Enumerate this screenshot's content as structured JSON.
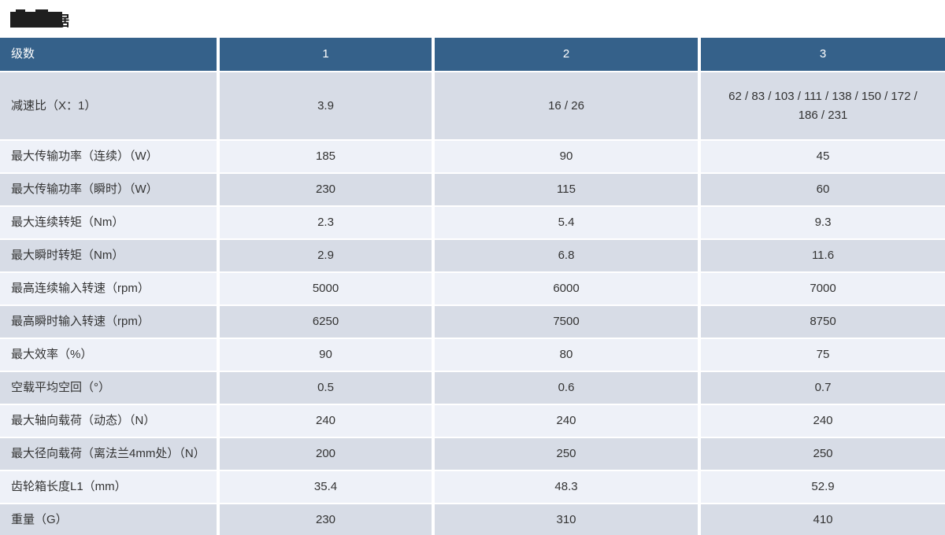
{
  "page_title": {
    "redacted": true,
    "visible_text": "据"
  },
  "table": {
    "header": {
      "label": "级数",
      "columns": [
        "1",
        "2",
        "3"
      ]
    },
    "rows": [
      {
        "label": "减速比（X：1）",
        "values": [
          "3.9",
          "16 / 26",
          "62 / 83 / 103 / 111 / 138 / 150 / 172 / 186 / 231"
        ]
      },
      {
        "label": "最大传输功率（连续）（W）",
        "values": [
          "185",
          "90",
          "45"
        ]
      },
      {
        "label": "最大传输功率（瞬时）（W）",
        "values": [
          "230",
          "115",
          "60"
        ]
      },
      {
        "label": "最大连续转矩（Nm）",
        "values": [
          "2.3",
          "5.4",
          "9.3"
        ]
      },
      {
        "label": "最大瞬时转矩（Nm）",
        "values": [
          "2.9",
          "6.8",
          "11.6"
        ]
      },
      {
        "label": "最高连续输入转速（rpm）",
        "values": [
          "5000",
          "6000",
          "7000"
        ]
      },
      {
        "label": "最高瞬时输入转速（rpm）",
        "values": [
          "6250",
          "7500",
          "8750"
        ]
      },
      {
        "label": "最大效率（%）",
        "values": [
          "90",
          "80",
          "75"
        ]
      },
      {
        "label": "空载平均空回（°）",
        "values": [
          "0.5",
          "0.6",
          "0.7"
        ]
      },
      {
        "label": "最大轴向载荷（动态）（N）",
        "values": [
          "240",
          "240",
          "240"
        ]
      },
      {
        "label": "最大径向载荷（离法兰4mm处）（N）",
        "values": [
          "200",
          "250",
          "250"
        ]
      },
      {
        "label": "齿轮箱长度L1（mm）",
        "values": [
          "35.4",
          "48.3",
          "52.9"
        ]
      },
      {
        "label": "重量（G）",
        "values": [
          "230",
          "310",
          "410"
        ]
      }
    ]
  },
  "colors": {
    "header_bg": "#35618a",
    "row_dark": "#d7dce6",
    "row_light": "#eef1f8",
    "divider": "#ffffff",
    "text": "#333333",
    "header_text": "#ffffff"
  }
}
